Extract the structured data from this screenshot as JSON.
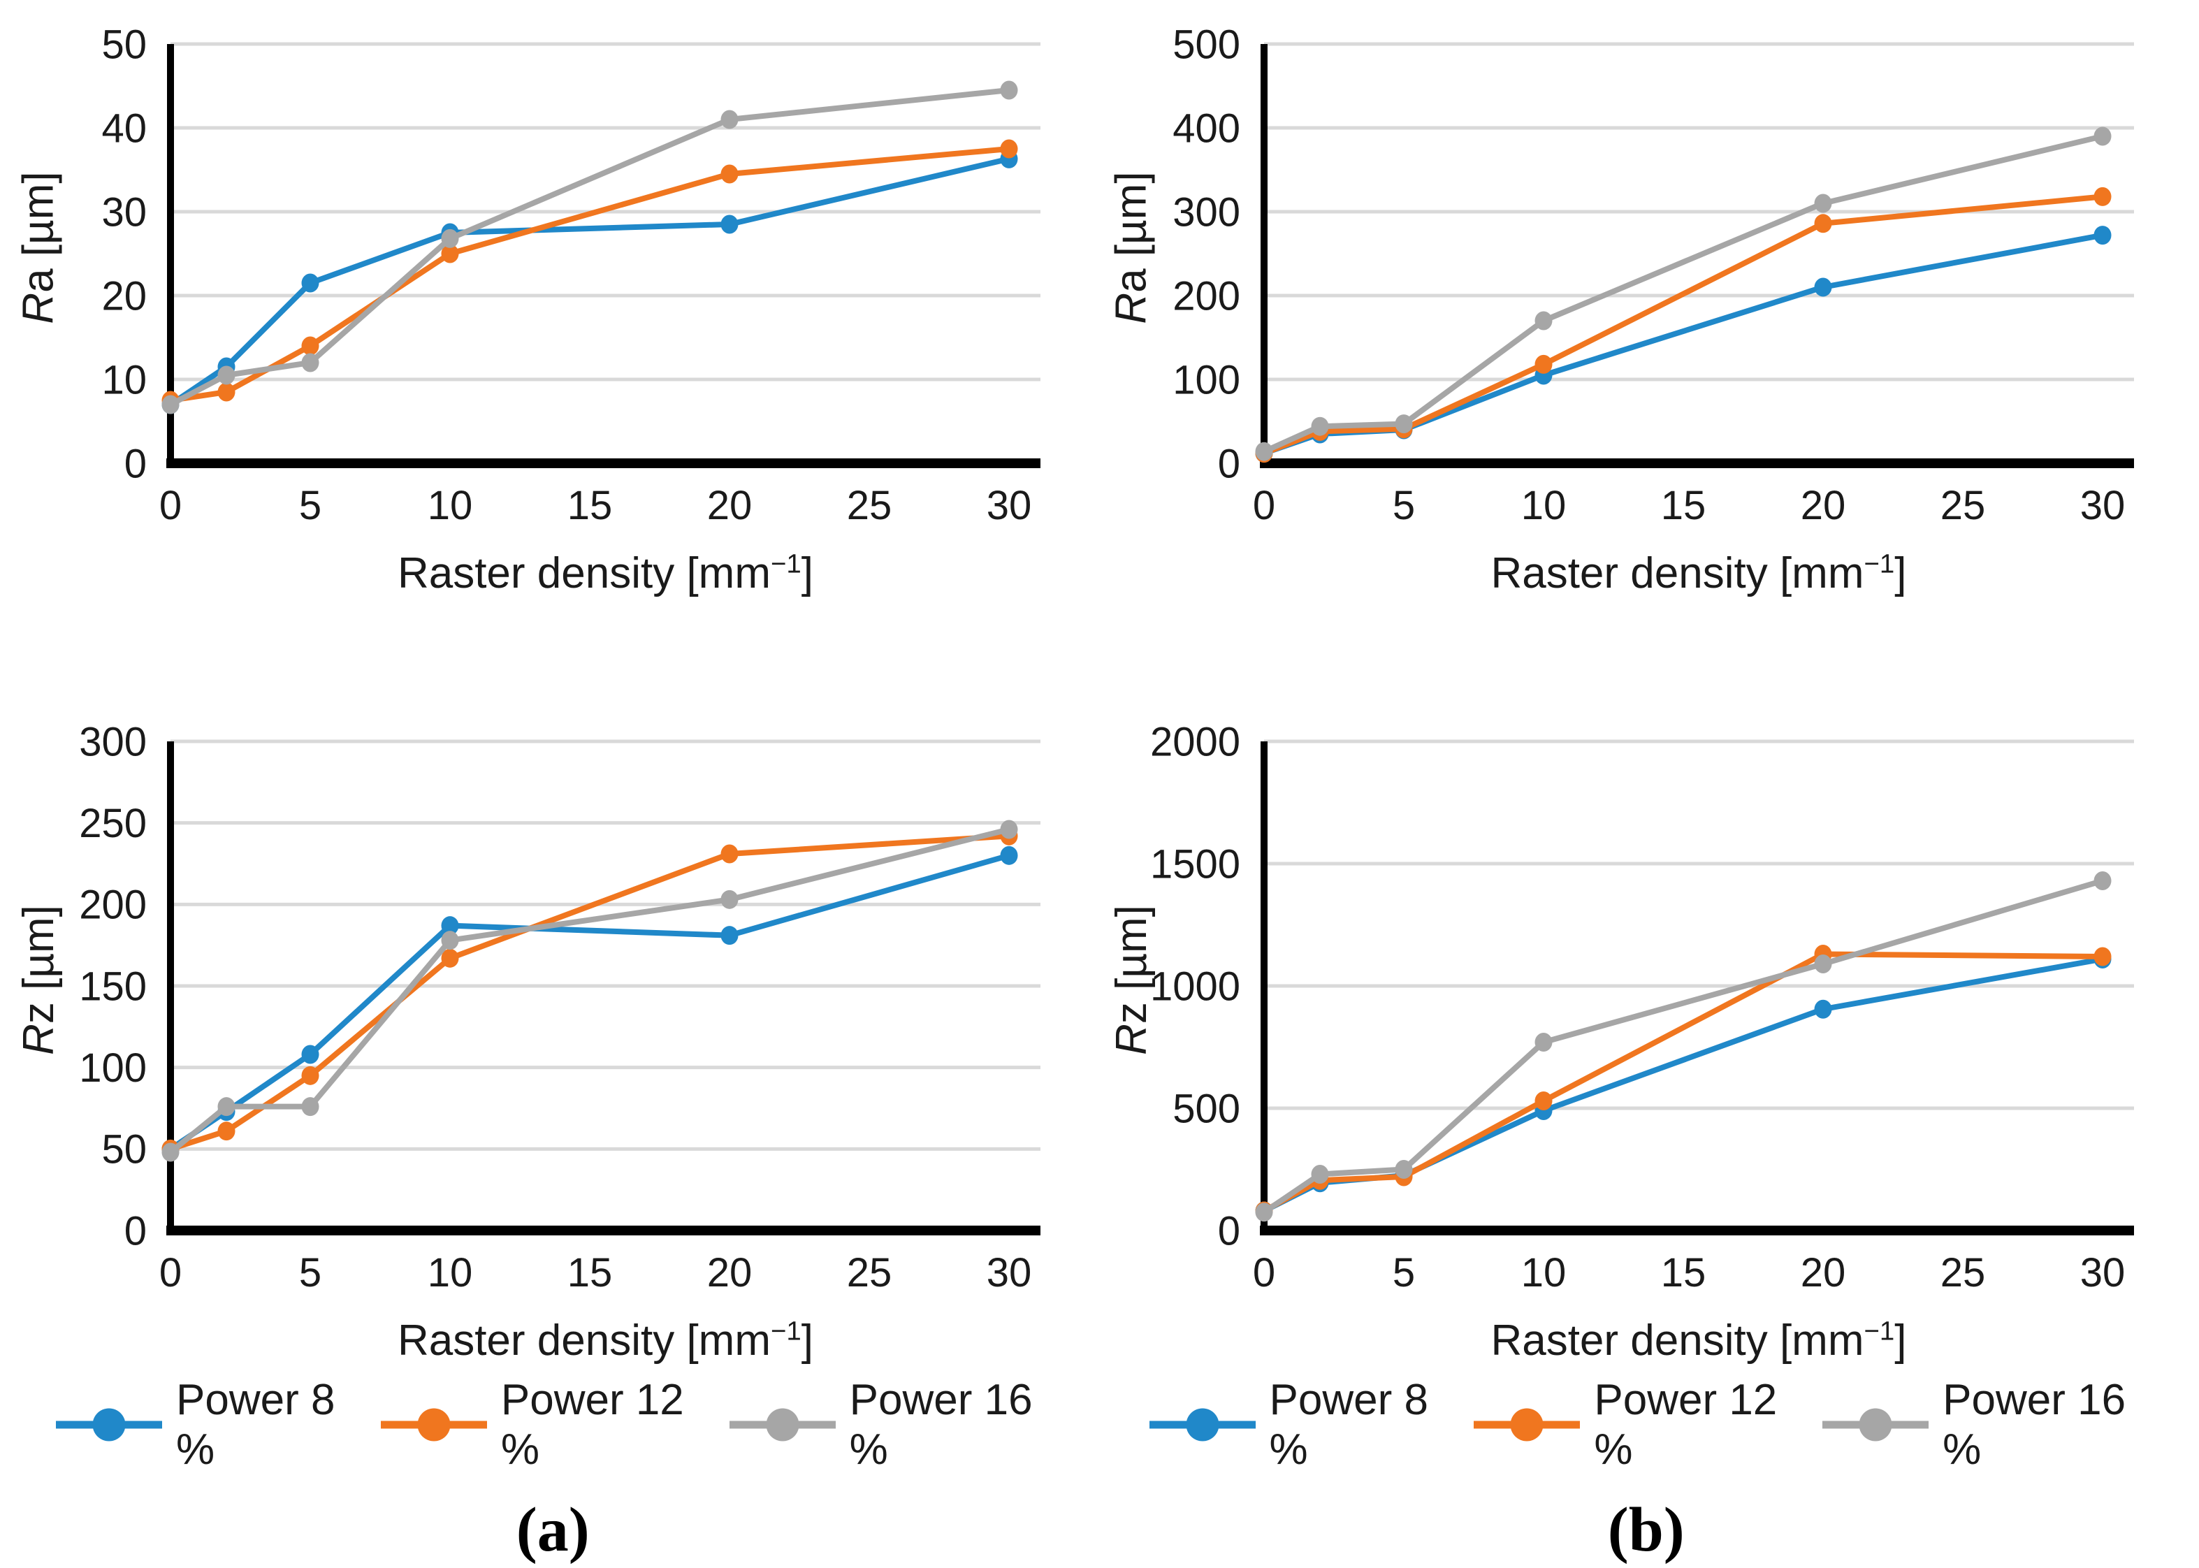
{
  "colors": {
    "power8": "#2088C9",
    "power12": "#F0761F",
    "power16": "#A6A6A6",
    "grid": "#D9D9D9",
    "axis": "#000000",
    "text": "#1a1a1a"
  },
  "legend": {
    "items": [
      {
        "label": "Power 8 %",
        "color_key": "power8"
      },
      {
        "label": "Power 12 %",
        "color_key": "power12"
      },
      {
        "label": "Power 16 %",
        "color_key": "power16"
      }
    ]
  },
  "captions": {
    "a": "(a)",
    "b": "(b)"
  },
  "chart_data": [
    {
      "id": "ra-a",
      "type": "line",
      "panel": "a",
      "ylabel": "Ra [µm]",
      "ylabel_italic": "R",
      "ylabel_rest": "a [µm]",
      "xlabel": "Raster density [mm⁻¹]",
      "xlabel_main": "Raster density [mm",
      "xlabel_sup": "−1",
      "xlabel_close": "]",
      "x": [
        0,
        2,
        5,
        10,
        20,
        30
      ],
      "xticks": [
        0,
        5,
        10,
        15,
        20,
        25,
        30
      ],
      "xlim": [
        0,
        30
      ],
      "ylim": [
        0,
        50
      ],
      "yticks": [
        0,
        10,
        20,
        30,
        40,
        50
      ],
      "grid": "horizontal",
      "legend_position": "bottom",
      "series": [
        {
          "name": "Power 8 %",
          "color_key": "power8",
          "values": [
            7,
            11.5,
            21.5,
            27.5,
            28.5,
            36.3
          ]
        },
        {
          "name": "Power 12 %",
          "color_key": "power12",
          "values": [
            7.5,
            8.5,
            14,
            25,
            34.5,
            37.5
          ]
        },
        {
          "name": "Power 16 %",
          "color_key": "power16",
          "values": [
            7,
            10.5,
            12,
            26.8,
            41,
            44.5
          ]
        }
      ]
    },
    {
      "id": "rz-a",
      "type": "line",
      "panel": "a",
      "ylabel": "Rz [µm]",
      "ylabel_italic": "R",
      "ylabel_rest": "z [µm]",
      "xlabel": "Raster density [mm⁻¹]",
      "xlabel_main": "Raster density [mm",
      "xlabel_sup": "−1",
      "xlabel_close": "]",
      "x": [
        0,
        2,
        5,
        10,
        20,
        30
      ],
      "xticks": [
        0,
        5,
        10,
        15,
        20,
        25,
        30
      ],
      "xlim": [
        0,
        30
      ],
      "ylim": [
        0,
        300
      ],
      "yticks": [
        0,
        50,
        100,
        150,
        200,
        250,
        300
      ],
      "grid": "horizontal",
      "legend_position": "bottom",
      "series": [
        {
          "name": "Power 8 %",
          "color_key": "power8",
          "values": [
            50,
            73,
            108,
            187,
            181,
            230
          ]
        },
        {
          "name": "Power 12 %",
          "color_key": "power12",
          "values": [
            50,
            61,
            95,
            167,
            231,
            242
          ]
        },
        {
          "name": "Power 16 %",
          "color_key": "power16",
          "values": [
            48,
            76,
            76,
            178,
            203,
            246
          ]
        }
      ]
    },
    {
      "id": "ra-b",
      "type": "line",
      "panel": "b",
      "ylabel": "Ra [µm]",
      "ylabel_italic": "R",
      "ylabel_rest": "a [µm]",
      "xlabel": "Raster density [mm⁻¹]",
      "xlabel_main": "Raster density [mm",
      "xlabel_sup": "−1",
      "xlabel_close": "]",
      "x": [
        0,
        2,
        5,
        10,
        20,
        30
      ],
      "xticks": [
        0,
        5,
        10,
        15,
        20,
        25,
        30
      ],
      "xlim": [
        0,
        30
      ],
      "ylim": [
        0,
        500
      ],
      "yticks": [
        0,
        100,
        200,
        300,
        400,
        500
      ],
      "grid": "horizontal",
      "legend_position": "bottom",
      "series": [
        {
          "name": "Power 8 %",
          "color_key": "power8",
          "values": [
            12,
            35,
            40,
            105,
            210,
            272
          ]
        },
        {
          "name": "Power 12 %",
          "color_key": "power12",
          "values": [
            12,
            38,
            41,
            118,
            286,
            318
          ]
        },
        {
          "name": "Power 16 %",
          "color_key": "power16",
          "values": [
            14,
            44,
            47,
            170,
            310,
            390
          ]
        }
      ]
    },
    {
      "id": "rz-b",
      "type": "line",
      "panel": "b",
      "ylabel": "Rz [µm]",
      "ylabel_italic": "R",
      "ylabel_rest": "z [µm]",
      "xlabel": "Raster density [mm⁻¹]",
      "xlabel_main": "Raster density [mm",
      "xlabel_sup": "−1",
      "xlabel_close": "]",
      "x": [
        0,
        2,
        5,
        10,
        20,
        30
      ],
      "xticks": [
        0,
        5,
        10,
        15,
        20,
        25,
        30
      ],
      "xlim": [
        0,
        30
      ],
      "ylim": [
        0,
        2000
      ],
      "yticks": [
        0,
        500,
        1000,
        1500,
        2000
      ],
      "grid": "horizontal",
      "legend_position": "bottom",
      "series": [
        {
          "name": "Power 8 %",
          "color_key": "power8",
          "values": [
            80,
            195,
            225,
            490,
            905,
            1110
          ]
        },
        {
          "name": "Power 12 %",
          "color_key": "power12",
          "values": [
            80,
            205,
            220,
            530,
            1130,
            1120
          ]
        },
        {
          "name": "Power 16 %",
          "color_key": "power16",
          "values": [
            75,
            230,
            250,
            770,
            1090,
            1430
          ]
        }
      ]
    }
  ]
}
